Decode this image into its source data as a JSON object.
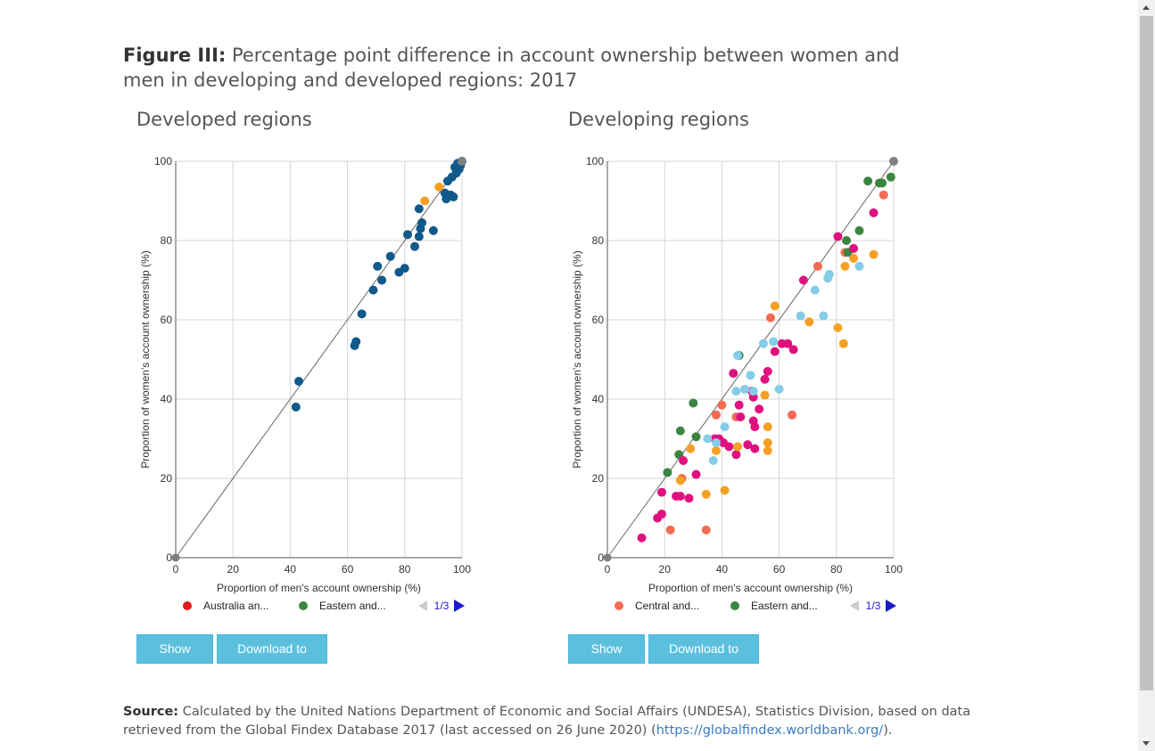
{
  "figure": {
    "label": "Figure III:",
    "title": "Percentage point difference in account ownership between women and men in developing and developed regions: 2017"
  },
  "buttons": {
    "show_data": "Show Data",
    "download_csv": "Download to CSV"
  },
  "source": {
    "label": "Source:",
    "text": "Calculated by the United Nations Department of Economic and Social Affairs (UNDESA), Statistics Division, based on data retrieved from the Global Findex Database 2017 (last accessed on 26 June 2020) (",
    "link": "https://globalfindex.worldbank.org/",
    "tail": ")."
  },
  "colors": {
    "developed": "#0f5a8a",
    "orange": "#f5a025",
    "red": "#f26b52",
    "green": "#3c8540",
    "magenta": "#e0107f",
    "lightblue": "#84cce8",
    "line_end": "#808080",
    "legend_red": "#e41a1c"
  },
  "chart_data": [
    {
      "type": "scatter",
      "title": "Developed regions",
      "xlabel": "Proportion of men's account ownership (%)",
      "ylabel": "Proportion of women's account ownership (%)",
      "xlim": [
        0,
        100
      ],
      "ylim": [
        0,
        100
      ],
      "ticks": [
        "0",
        "20",
        "40",
        "60",
        "80",
        "100"
      ],
      "grid": true,
      "reference_line": [
        [
          0,
          0
        ],
        [
          100,
          100
        ]
      ],
      "legend": {
        "placement": "bottom",
        "entries": [
          {
            "label": "Australia an...",
            "color": "#e41a1c"
          },
          {
            "label": "Eastern and...",
            "color": "#3c8540"
          }
        ],
        "page": "1/3"
      },
      "series": [
        {
          "color": "#0f5a8a",
          "points": [
            [
              42,
              38
            ],
            [
              43,
              44.5
            ],
            [
              62.5,
              53.5
            ],
            [
              63,
              54.5
            ],
            [
              65,
              61.5
            ],
            [
              69,
              67.5
            ],
            [
              70.5,
              73.5
            ],
            [
              72,
              70
            ],
            [
              75,
              76
            ],
            [
              78,
              72
            ],
            [
              80,
              73
            ],
            [
              81,
              81.5
            ],
            [
              83.5,
              78.5
            ],
            [
              85,
              88
            ],
            [
              85,
              81
            ],
            [
              85.5,
              83
            ],
            [
              86,
              84.5
            ],
            [
              90,
              82.5
            ],
            [
              94,
              92
            ],
            [
              94.5,
              90.5
            ],
            [
              95,
              95
            ],
            [
              96,
              91.5
            ],
            [
              96.5,
              96
            ],
            [
              97,
              91
            ],
            [
              97.5,
              98.5
            ],
            [
              98,
              97
            ],
            [
              98.5,
              99.5
            ],
            [
              99,
              98
            ],
            [
              99.5,
              99
            ],
            [
              100,
              100
            ]
          ]
        },
        {
          "color": "#f5a025",
          "points": [
            [
              87,
              90
            ],
            [
              92,
              93.5
            ]
          ]
        }
      ]
    },
    {
      "type": "scatter",
      "title": "Developing regions",
      "xlabel": "Proportion of men's account ownership (%)",
      "ylabel": "Proportion of women's account ownership (%)",
      "xlim": [
        0,
        100
      ],
      "ylim": [
        0,
        100
      ],
      "ticks": [
        "0",
        "20",
        "40",
        "60",
        "80",
        "100"
      ],
      "grid": true,
      "reference_line": [
        [
          0,
          0
        ],
        [
          100,
          100
        ]
      ],
      "legend": {
        "placement": "bottom",
        "entries": [
          {
            "label": "Central and...",
            "color": "#f26b52"
          },
          {
            "label": "Eastern and...",
            "color": "#3c8540"
          }
        ],
        "page": "1/3"
      },
      "series": [
        {
          "color": "#f26b52",
          "points": [
            [
              22,
              7
            ],
            [
              26,
              20
            ],
            [
              34.5,
              7
            ],
            [
              38,
              36
            ],
            [
              40,
              38.5
            ],
            [
              45,
              35.5
            ],
            [
              57,
              60.5
            ],
            [
              64.5,
              36
            ],
            [
              73.5,
              73.5
            ],
            [
              83,
              77
            ],
            [
              86,
              78
            ],
            [
              96.5,
              91.5
            ]
          ]
        },
        {
          "color": "#3c8540",
          "points": [
            [
              21,
              21.5
            ],
            [
              25,
              26
            ],
            [
              25.5,
              32
            ],
            [
              30,
              39
            ],
            [
              31,
              30.5
            ],
            [
              46,
              51
            ],
            [
              83.5,
              80
            ],
            [
              84,
              77
            ],
            [
              88,
              82.5
            ],
            [
              91,
              95
            ],
            [
              95,
              94.5
            ],
            [
              96,
              94.5
            ],
            [
              99,
              96
            ]
          ]
        },
        {
          "color": "#e0107f",
          "points": [
            [
              12,
              5
            ],
            [
              17.5,
              10
            ],
            [
              19,
              11
            ],
            [
              19,
              16.5
            ],
            [
              24,
              15.5
            ],
            [
              25.5,
              15.5
            ],
            [
              26.5,
              24.5
            ],
            [
              28.5,
              15
            ],
            [
              31,
              21
            ],
            [
              37.5,
              30
            ],
            [
              39,
              30
            ],
            [
              40.5,
              29
            ],
            [
              42.5,
              28
            ],
            [
              44,
              46.5
            ],
            [
              45,
              26
            ],
            [
              46,
              38.5
            ],
            [
              46.5,
              35.5
            ],
            [
              49,
              28.5
            ],
            [
              50.5,
              42
            ],
            [
              51,
              40.5
            ],
            [
              51,
              34.5
            ],
            [
              51.5,
              33
            ],
            [
              51.5,
              27.5
            ],
            [
              53,
              37.5
            ],
            [
              55,
              45
            ],
            [
              56,
              47
            ],
            [
              58.5,
              52
            ],
            [
              61,
              54
            ],
            [
              63,
              54
            ],
            [
              65,
              52.5
            ],
            [
              68.5,
              70
            ],
            [
              80.5,
              81
            ],
            [
              86,
              78
            ],
            [
              93,
              87
            ]
          ]
        },
        {
          "color": "#f5a025",
          "points": [
            [
              25.5,
              19.5
            ],
            [
              29,
              27.5
            ],
            [
              34.5,
              16
            ],
            [
              38,
              27
            ],
            [
              41,
              17
            ],
            [
              45.5,
              28
            ],
            [
              55,
              41
            ],
            [
              56,
              29
            ],
            [
              56,
              33
            ],
            [
              56,
              27
            ],
            [
              58.5,
              63.5
            ],
            [
              70.5,
              59.5
            ],
            [
              80.5,
              58
            ],
            [
              82.5,
              54
            ],
            [
              83,
              73.5
            ],
            [
              86,
              75.5
            ],
            [
              93,
              76.5
            ]
          ]
        },
        {
          "color": "#84cce8",
          "points": [
            [
              35,
              30
            ],
            [
              37,
              24.5
            ],
            [
              38,
              29
            ],
            [
              41,
              33
            ],
            [
              45,
              42
            ],
            [
              45.5,
              51
            ],
            [
              48,
              42.5
            ],
            [
              50,
              46
            ],
            [
              51,
              42
            ],
            [
              54.5,
              54
            ],
            [
              58,
              54.5
            ],
            [
              60,
              42.5
            ],
            [
              67.5,
              61
            ],
            [
              72.5,
              67.5
            ],
            [
              75.5,
              61
            ],
            [
              77,
              70.5
            ],
            [
              77.5,
              71.5
            ],
            [
              88,
              73.5
            ]
          ]
        }
      ]
    }
  ]
}
